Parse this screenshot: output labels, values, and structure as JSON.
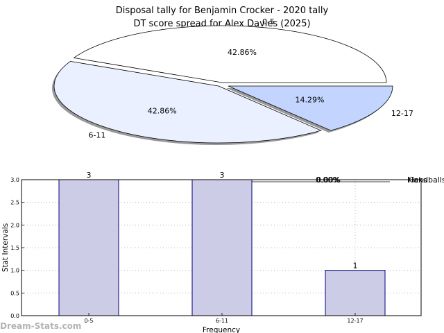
{
  "titles": {
    "line1": "Disposal tally for Benjamin Crocker - 2020 tally",
    "line2": "DT score spread for Alex Davies (2025)"
  },
  "watermark": "Dream-Stats.com",
  "colors": {
    "pie_0_5": "#ffffff",
    "pie_6_11": "#eaf0ff",
    "pie_12_17": "#c2d4ff",
    "bar_fill": "#cccce6",
    "bar_edge": "#000080"
  },
  "chart_data": [
    {
      "type": "pie",
      "slices": [
        {
          "label": "0-5",
          "value": 42.86,
          "pct_label": "42.86%"
        },
        {
          "label": "6-11",
          "value": 42.86,
          "pct_label": "42.86%"
        },
        {
          "label": "12-17",
          "value": 14.29,
          "pct_label": "14.29%"
        }
      ],
      "ghost_pct_labels": [
        "0.00%",
        "0.00%"
      ],
      "ghost_legend": [
        "Kicks",
        "Handballs"
      ]
    },
    {
      "type": "bar",
      "categories": [
        "0-5",
        "6-11",
        "12-17"
      ],
      "values": [
        3,
        3,
        1
      ],
      "value_labels": [
        "3",
        "3",
        "1"
      ],
      "xlabel": "Frequency",
      "ylabel": "Stat Intervals",
      "ylim": [
        0,
        3.0
      ],
      "yticks": [
        "0.0",
        "0.5",
        "1.0",
        "1.5",
        "2.0",
        "2.5",
        "3.0"
      ],
      "grid": true
    }
  ]
}
